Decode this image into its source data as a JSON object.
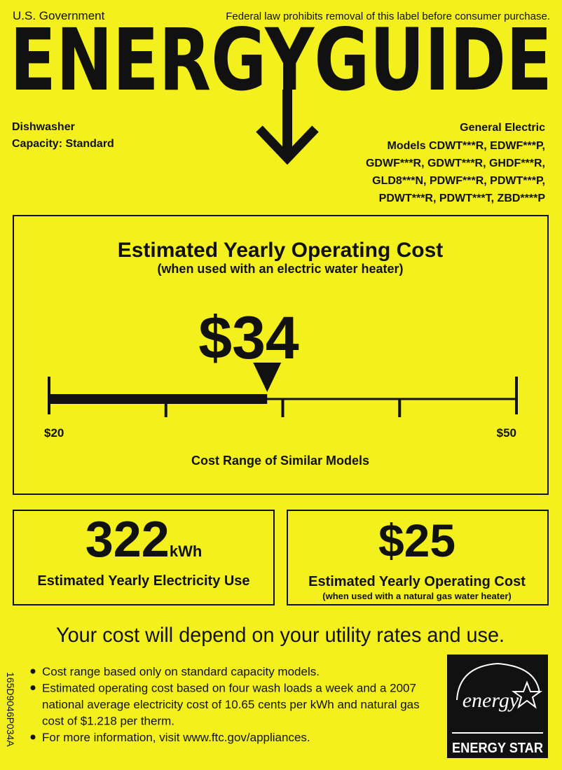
{
  "header": {
    "left": "U.S. Government",
    "right": "Federal law prohibits removal of this label before consumer purchase.",
    "title": "ENERGYGUIDE"
  },
  "product": {
    "type": "Dishwasher",
    "capacity": "Capacity: Standard"
  },
  "manufacturer": {
    "name": "General Electric",
    "models": [
      "Models CDWT***R, EDWF***P,",
      "GDWF***R, GDWT***R, GHDF***R,",
      "GLD8***N, PDWF***R, PDWT***P,",
      "PDWT***R, PDWT***T, ZBD****P"
    ]
  },
  "operating_cost": {
    "title": "Estimated Yearly Operating Cost",
    "subtitle": "(when used with an electric water heater)",
    "value": {
      "value": 34,
      "label": "$34"
    },
    "min": {
      "value": 20,
      "label": "$20"
    },
    "max": {
      "value": 50,
      "label": "$50"
    },
    "range_label": "Cost Range of Similar Models"
  },
  "electricity_use": {
    "value": "322",
    "unit": "kWh",
    "label": "Estimated Yearly Electricity Use"
  },
  "gas_cost": {
    "value": "$25",
    "label": "Estimated Yearly Operating Cost",
    "sublabel": "(when used with a natural gas water heater)"
  },
  "notice": "Your cost will depend on your utility rates and use.",
  "notes": [
    [
      "Cost range based only on standard capacity models."
    ],
    [
      "Estimated operating cost based on four wash loads a week and a 2007",
      "national average electricity cost of 10.65 cents per kWh and natural gas",
      "cost of $1.218 per therm."
    ],
    [
      "For more information, visit www.ftc.gov/appliances."
    ]
  ],
  "energy_star": {
    "script": "energy",
    "label": "ENERGY STAR"
  },
  "label_code": "165D9046P034A"
}
